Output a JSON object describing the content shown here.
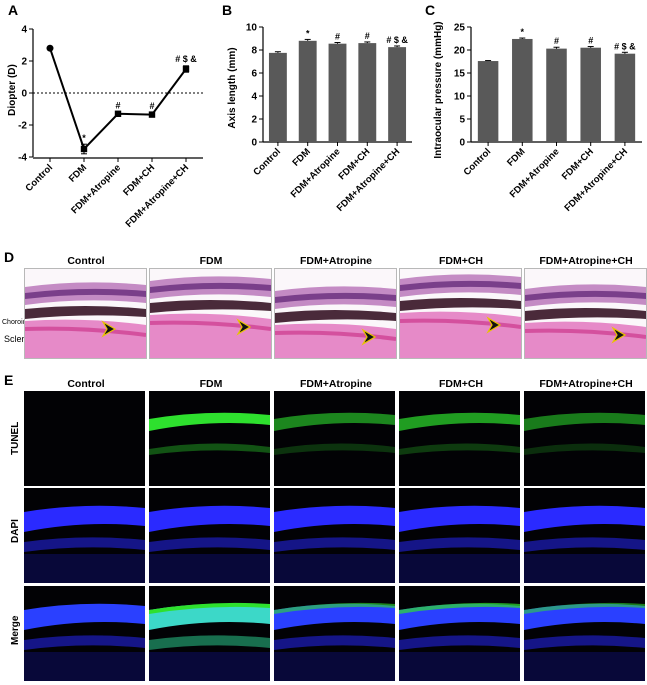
{
  "panels": {
    "A": {
      "letter": "A"
    },
    "B": {
      "letter": "B"
    },
    "C": {
      "letter": "C"
    },
    "D": {
      "letter": "D"
    },
    "E": {
      "letter": "E"
    }
  },
  "groups": [
    "Control",
    "FDM",
    "FDM+Atropine",
    "FDM+CH",
    "FDM+Atropine+CH"
  ],
  "chart_data": [
    {
      "id": "A",
      "type": "line",
      "categories": [
        "Control",
        "FDM",
        "FDM+Atropine",
        "FDM+CH",
        "FDM+Atropine+CH"
      ],
      "values": [
        2.8,
        -3.5,
        -1.3,
        -1.35,
        1.5
      ],
      "errors": [
        0.05,
        0.3,
        0.15,
        0.15,
        0.2
      ],
      "annotations": [
        "",
        "*",
        "#",
        "#",
        "# $ &"
      ],
      "ylabel": "Diopter (D)",
      "ylim": [
        -4,
        4
      ],
      "yticks": [
        -4,
        -2,
        0,
        2,
        4
      ],
      "reference_line": 0
    },
    {
      "id": "B",
      "type": "bar",
      "categories": [
        "Control",
        "FDM",
        "FDM+Atropine",
        "FDM+CH",
        "FDM+Atropine+CH"
      ],
      "values": [
        7.75,
        8.8,
        8.55,
        8.6,
        8.25
      ],
      "errors": [
        0.1,
        0.12,
        0.1,
        0.1,
        0.1
      ],
      "annotations": [
        "",
        "*",
        "#",
        "#",
        "# $ &"
      ],
      "ylabel": "Axis length (mm)",
      "ylim": [
        0,
        10
      ],
      "yticks": [
        0,
        2,
        4,
        6,
        8,
        10
      ],
      "bar_color": "#595959"
    },
    {
      "id": "C",
      "type": "bar",
      "categories": [
        "Control",
        "FDM",
        "FDM+Atropine",
        "FDM+CH",
        "FDM+Atropine+CH"
      ],
      "values": [
        17.6,
        22.4,
        20.3,
        20.5,
        19.2
      ],
      "errors": [
        0.1,
        0.2,
        0.3,
        0.25,
        0.3
      ],
      "annotations": [
        "",
        "*",
        "#",
        "#",
        "# $ &"
      ],
      "ylabel": "Intraocular pressure (mmHg)",
      "ylim": [
        0,
        25
      ],
      "yticks": [
        0,
        5,
        10,
        15,
        20,
        25
      ],
      "bar_color": "#595959"
    }
  ],
  "histology": {
    "columns": [
      "Control",
      "FDM",
      "FDM+Atropine",
      "FDM+CH",
      "FDM+Atropine+CH"
    ],
    "side_labels": {
      "choroid": "Choroid",
      "sclera": "Sclera"
    }
  },
  "fluorescence": {
    "columns": [
      "Control",
      "FDM",
      "FDM+Atropine",
      "FDM+CH",
      "FDM+Atropine+CH"
    ],
    "rows": [
      "TUNEL",
      "DAPI",
      "Merge"
    ]
  }
}
